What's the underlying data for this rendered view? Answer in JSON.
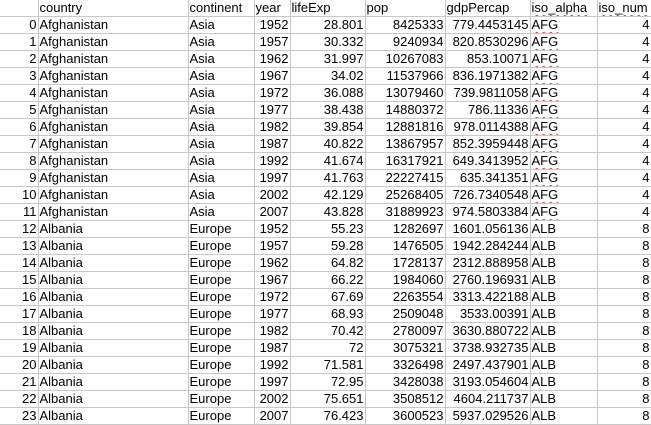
{
  "sheet": {
    "headers": [
      "",
      "country",
      "continent",
      "year",
      "lifeExp",
      "pop",
      "gdpPercap",
      "iso_alpha",
      "iso_num"
    ],
    "rows": [
      [
        "0",
        "Afghanistan",
        "Asia",
        "1952",
        "28.801",
        "8425333",
        "779.4453145",
        "AFG",
        "4"
      ],
      [
        "1",
        "Afghanistan",
        "Asia",
        "1957",
        "30.332",
        "9240934",
        "820.8530296",
        "AFG",
        "4"
      ],
      [
        "2",
        "Afghanistan",
        "Asia",
        "1962",
        "31.997",
        "10267083",
        "853.10071",
        "AFG",
        "4"
      ],
      [
        "3",
        "Afghanistan",
        "Asia",
        "1967",
        "34.02",
        "11537966",
        "836.1971382",
        "AFG",
        "4"
      ],
      [
        "4",
        "Afghanistan",
        "Asia",
        "1972",
        "36.088",
        "13079460",
        "739.9811058",
        "AFG",
        "4"
      ],
      [
        "5",
        "Afghanistan",
        "Asia",
        "1977",
        "38.438",
        "14880372",
        "786.11336",
        "AFG",
        "4"
      ],
      [
        "6",
        "Afghanistan",
        "Asia",
        "1982",
        "39.854",
        "12881816",
        "978.0114388",
        "AFG",
        "4"
      ],
      [
        "7",
        "Afghanistan",
        "Asia",
        "1987",
        "40.822",
        "13867957",
        "852.3959448",
        "AFG",
        "4"
      ],
      [
        "8",
        "Afghanistan",
        "Asia",
        "1992",
        "41.674",
        "16317921",
        "649.3413952",
        "AFG",
        "4"
      ],
      [
        "9",
        "Afghanistan",
        "Asia",
        "1997",
        "41.763",
        "22227415",
        "635.341351",
        "AFG",
        "4"
      ],
      [
        "10",
        "Afghanistan",
        "Asia",
        "2002",
        "42.129",
        "25268405",
        "726.7340548",
        "AFG",
        "4"
      ],
      [
        "11",
        "Afghanistan",
        "Asia",
        "2007",
        "43.828",
        "31889923",
        "974.5803384",
        "AFG",
        "4"
      ],
      [
        "12",
        "Albania",
        "Europe",
        "1952",
        "55.23",
        "1282697",
        "1601.056136",
        "ALB",
        "8"
      ],
      [
        "13",
        "Albania",
        "Europe",
        "1957",
        "59.28",
        "1476505",
        "1942.284244",
        "ALB",
        "8"
      ],
      [
        "14",
        "Albania",
        "Europe",
        "1962",
        "64.82",
        "1728137",
        "2312.888958",
        "ALB",
        "8"
      ],
      [
        "15",
        "Albania",
        "Europe",
        "1967",
        "66.22",
        "1984060",
        "2760.196931",
        "ALB",
        "8"
      ],
      [
        "16",
        "Albania",
        "Europe",
        "1972",
        "67.69",
        "2263554",
        "3313.422188",
        "ALB",
        "8"
      ],
      [
        "17",
        "Albania",
        "Europe",
        "1977",
        "68.93",
        "2509048",
        "3533.00391",
        "ALB",
        "8"
      ],
      [
        "18",
        "Albania",
        "Europe",
        "1982",
        "70.42",
        "2780097",
        "3630.880722",
        "ALB",
        "8"
      ],
      [
        "19",
        "Albania",
        "Europe",
        "1987",
        "72",
        "3075321",
        "3738.932735",
        "ALB",
        "8"
      ],
      [
        "20",
        "Albania",
        "Europe",
        "1992",
        "71.581",
        "3326498",
        "2497.437901",
        "ALB",
        "8"
      ],
      [
        "21",
        "Albania",
        "Europe",
        "1997",
        "72.95",
        "3428038",
        "3193.054604",
        "ALB",
        "8"
      ],
      [
        "22",
        "Albania",
        "Europe",
        "2002",
        "75.651",
        "3508512",
        "4604.211737",
        "ALB",
        "8"
      ],
      [
        "23",
        "Albania",
        "Europe",
        "2007",
        "76.423",
        "3600523",
        "5937.029526",
        "ALB",
        "8"
      ]
    ]
  }
}
